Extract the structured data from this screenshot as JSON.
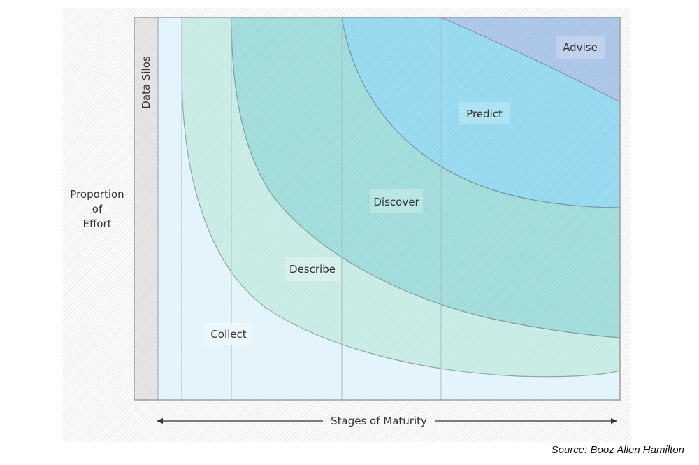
{
  "diagram": {
    "y_axis_label": [
      "Proportion",
      "of",
      "Effort"
    ],
    "x_axis_label": "Stages of Maturity",
    "data_silos_label": "Data Silos",
    "regions": [
      {
        "name": "Collect",
        "color": "#e3f3fb"
      },
      {
        "name": "Describe",
        "color": "#c7ebe4"
      },
      {
        "name": "Discover",
        "color": "#9fdbd9"
      },
      {
        "name": "Predict",
        "color": "#94d8ef"
      },
      {
        "name": "Advise",
        "color": "#a9c4e6"
      }
    ],
    "source": "Source: Booz Allen Hamilton"
  }
}
